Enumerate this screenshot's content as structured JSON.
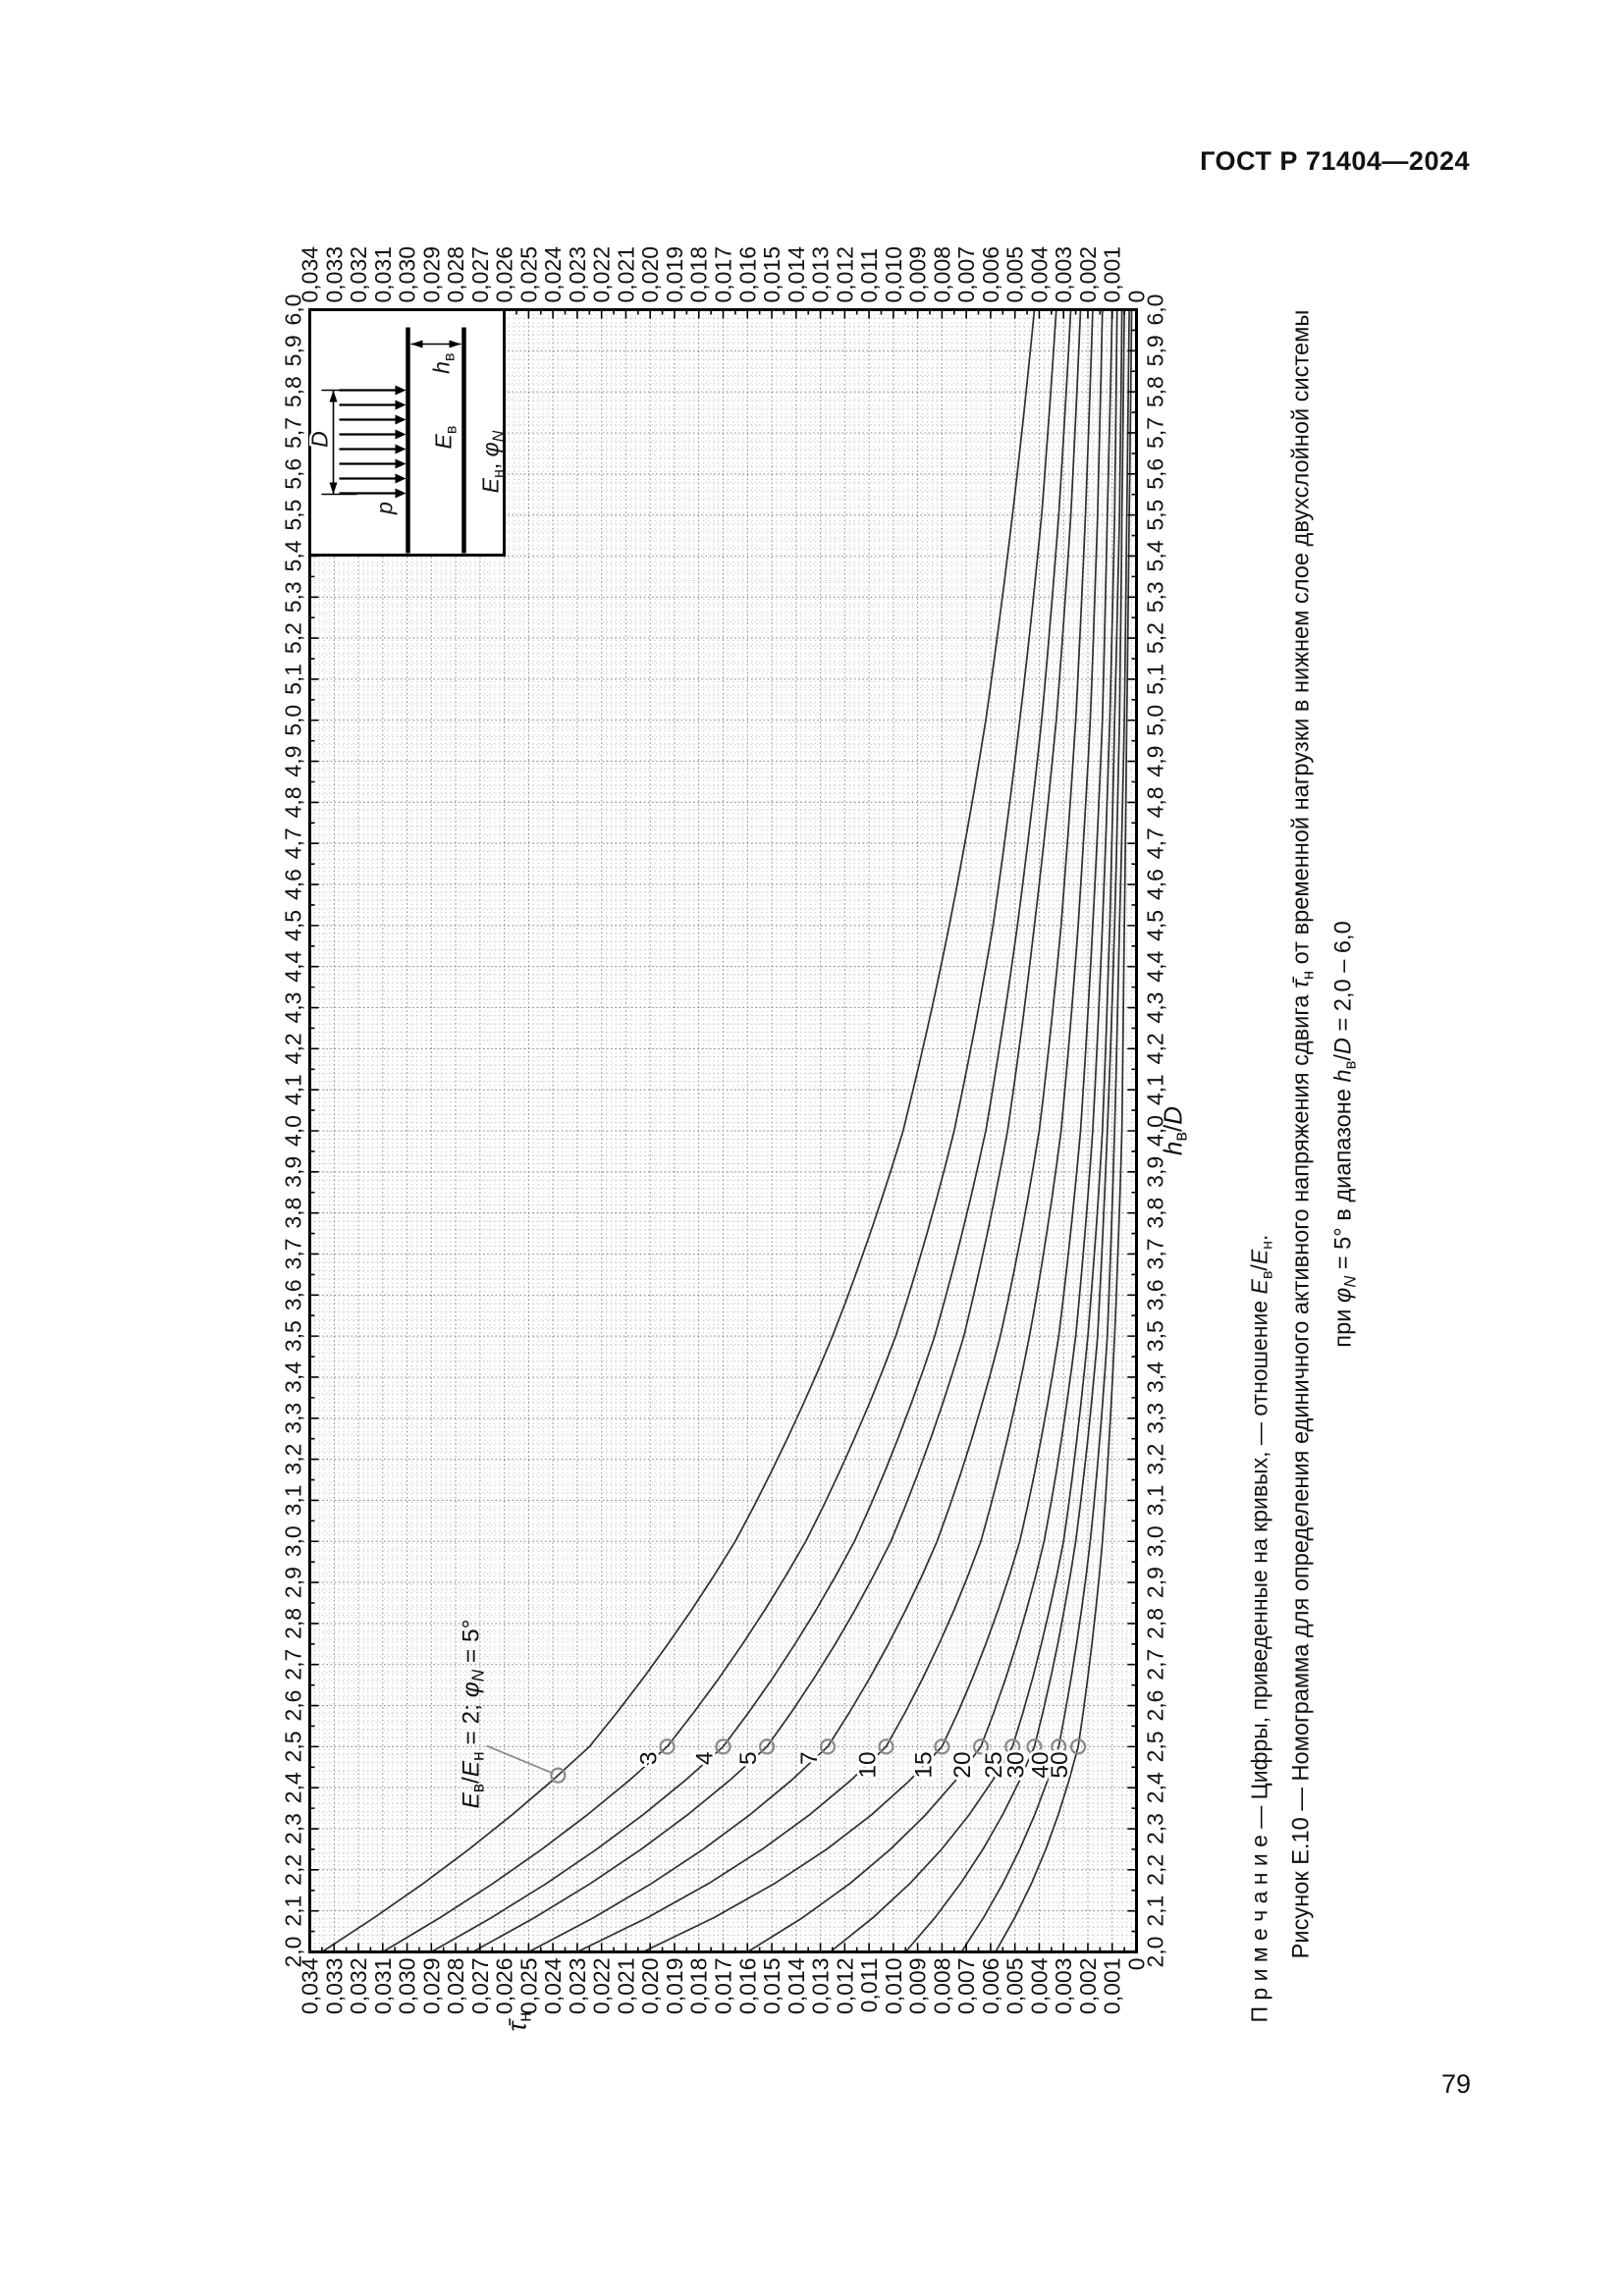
{
  "page": {
    "header": "ГОСТ Р 71404—2024",
    "page_number": "79"
  },
  "chart_data": {
    "type": "line",
    "xlabel": "hв/D",
    "ylabel": "τ̄н",
    "xlabel_segments": [
      {
        "t": "h",
        "i": 1
      },
      {
        "t": "в",
        "sub": 1
      },
      {
        "t": "/"
      },
      {
        "t": "D",
        "i": 1
      }
    ],
    "ylabel_segments": [
      {
        "t": "τ̄",
        "i": 1
      },
      {
        "t": "н",
        "sub": 1
      }
    ],
    "xlim": [
      2.0,
      6.0
    ],
    "ylim": [
      0,
      0.034
    ],
    "grid": "fine-dotted",
    "legend_position": "none",
    "x_ticks": [
      "2,0",
      "2,1",
      "2,2",
      "2,3",
      "2,4",
      "2,5",
      "2,6",
      "2,7",
      "2,8",
      "2,9",
      "3,0",
      "3,1",
      "3,2",
      "3,3",
      "3,4",
      "3,5",
      "3,6",
      "3,7",
      "3,8",
      "3,9",
      "4,0",
      "4,1",
      "4,2",
      "4,3",
      "4,4",
      "4,5",
      "4,6",
      "4,7",
      "4,8",
      "4,9",
      "5,0",
      "5,1",
      "5,2",
      "5,3",
      "5,4",
      "5,5",
      "5,6",
      "5,7",
      "5,8",
      "5,9",
      "6,0"
    ],
    "y_ticks": [
      "0,034",
      "0,033",
      "0,032",
      "0,031",
      "0,030",
      "0,029",
      "0,028",
      "0,027",
      "0,026",
      "0,025",
      "0,024",
      "0,023",
      "0,022",
      "0,021",
      "0,020",
      "0,019",
      "0,018",
      "0,017",
      "0,016",
      "0,015",
      "0,014",
      "0,013",
      "0,012",
      "0,011",
      "0,010",
      "0,009",
      "0,008",
      "0,007",
      "0,006",
      "0,005",
      "0,004",
      "0,003",
      "0,002",
      "0,001",
      "0"
    ],
    "h_samples": [
      2.0,
      2.5,
      3.0,
      3.5,
      4.0,
      4.5,
      5.0,
      5.5,
      6.0
    ],
    "series": [
      {
        "ratio": "2",
        "values": [
          0.0335,
          0.0225,
          0.0165,
          0.0125,
          0.0096,
          0.0077,
          0.0062,
          0.0051,
          0.0042
        ]
      },
      {
        "ratio": "3",
        "values": [
          0.031,
          0.0193,
          0.0136,
          0.0099,
          0.0075,
          0.0059,
          0.0048,
          0.0039,
          0.0033
        ]
      },
      {
        "ratio": "4",
        "values": [
          0.029,
          0.017,
          0.0116,
          0.0083,
          0.0062,
          0.0049,
          0.0039,
          0.0032,
          0.0027
        ]
      },
      {
        "ratio": "5",
        "values": [
          0.0273,
          0.0152,
          0.0101,
          0.0071,
          0.0053,
          0.0042,
          0.0033,
          0.0027,
          0.0023
        ]
      },
      {
        "ratio": "7",
        "values": [
          0.025,
          0.0127,
          0.0082,
          0.0056,
          0.004,
          0.0031,
          0.0025,
          0.0021,
          0.0018
        ]
      },
      {
        "ratio": "10",
        "values": [
          0.023,
          0.0103,
          0.0064,
          0.0044,
          0.0031,
          0.0024,
          0.0019,
          0.0016,
          0.0014
        ]
      },
      {
        "ratio": "15",
        "values": [
          0.0203,
          0.008,
          0.0048,
          0.0032,
          0.0023,
          0.0018,
          0.0014,
          0.0012,
          0.001
        ]
      },
      {
        "ratio": "20",
        "values": [
          0.016,
          0.0064,
          0.0038,
          0.0025,
          0.0018,
          0.0014,
          0.0011,
          0.0009,
          0.0008
        ]
      },
      {
        "ratio": "25",
        "values": [
          0.0126,
          0.0051,
          0.003,
          0.002,
          0.0014,
          0.0011,
          0.0009,
          0.0007,
          0.0006
        ]
      },
      {
        "ratio": "30",
        "values": [
          0.0095,
          0.0042,
          0.0025,
          0.0016,
          0.0012,
          0.0009,
          0.0007,
          0.0006,
          0.0005
        ]
      },
      {
        "ratio": "40",
        "values": [
          0.0072,
          0.0032,
          0.0019,
          0.0012,
          0.0009,
          0.0007,
          0.0005,
          0.0004,
          0.0003
        ]
      },
      {
        "ratio": "50",
        "values": [
          0.0058,
          0.0024,
          0.0014,
          0.0009,
          0.0006,
          0.0005,
          0.0004,
          0.0003,
          0.0002
        ]
      }
    ],
    "first_curve_label_segments": [
      {
        "t": "E",
        "i": 1
      },
      {
        "t": "в",
        "sub": 1
      },
      {
        "t": "/"
      },
      {
        "t": "E",
        "i": 1
      },
      {
        "t": "н",
        "sub": 1
      },
      {
        "t": " = 2; "
      },
      {
        "t": "φ",
        "i": 1
      },
      {
        "t": "N",
        "i": 1,
        "sub": 1
      },
      {
        "t": " = 5°"
      }
    ],
    "first_curve_label_h": 2.43,
    "number_label_h": 2.5,
    "note_segments": [
      {
        "t": "П р и м е ч а н и е — Цифры, приведенные на кривых, — отношение "
      },
      {
        "t": "E",
        "i": 1
      },
      {
        "t": "в",
        "sub": 1
      },
      {
        "t": "/"
      },
      {
        "t": "E",
        "i": 1
      },
      {
        "t": "н",
        "sub": 1
      },
      {
        "t": "."
      }
    ],
    "caption_line1_segments": [
      {
        "t": "Рисунок Е.10 — Номограмма для определения единичного активного напряжения сдвига "
      },
      {
        "t": "τ̄",
        "i": 1
      },
      {
        "t": "н",
        "sub": 1
      },
      {
        "t": " от временной нагрузки в нижнем слое двухслойной системы"
      }
    ],
    "caption_line2_segments": [
      {
        "t": "при "
      },
      {
        "t": "φ",
        "i": 1
      },
      {
        "t": "N",
        "i": 1,
        "sub": 1
      },
      {
        "t": " = 5° в диапазоне "
      },
      {
        "t": "h",
        "i": 1
      },
      {
        "t": "в",
        "sub": 1
      },
      {
        "t": "/"
      },
      {
        "t": "D",
        "i": 1
      },
      {
        "t": " = 2,0 – 6,0"
      }
    ]
  },
  "inset": {
    "p_segments": [
      {
        "t": "p",
        "i": 1
      }
    ],
    "D_segments": [
      {
        "t": "D",
        "i": 1
      }
    ],
    "E_upper_segments": [
      {
        "t": "E",
        "i": 1
      },
      {
        "t": "в",
        "sub": 1
      }
    ],
    "h_upper_segments": [
      {
        "t": "h",
        "i": 1
      },
      {
        "t": "в",
        "sub": 1
      }
    ],
    "E_lower_segments": [
      {
        "t": "E",
        "i": 1
      },
      {
        "t": "н",
        "sub": 1
      },
      {
        "t": ", "
      },
      {
        "t": "φ",
        "i": 1
      },
      {
        "t": "N",
        "i": 1,
        "sub": 1
      }
    ]
  },
  "colors": {
    "background": "#ffffff",
    "curve": "#2f2f2f",
    "grid_minor": "#b9b9b9",
    "grid_major": "#8f8f8f",
    "frame": "#000000",
    "circle": "#8a8a8a",
    "text": "#111111"
  }
}
